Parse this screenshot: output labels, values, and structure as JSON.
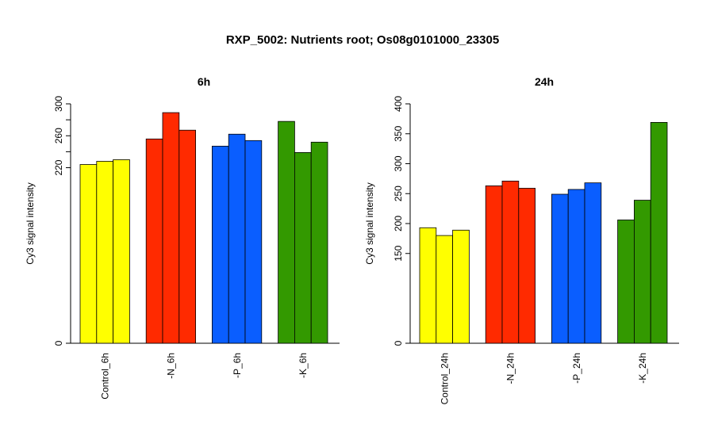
{
  "title": "RXP_5002: Nutrients root; Os08g0101000_23305",
  "chart_data": [
    {
      "type": "bar",
      "title": "6h",
      "ylabel": "Cy3 signal intensity",
      "ylim": [
        0,
        300
      ],
      "yticks": [
        "0",
        "220",
        "260",
        "300"
      ],
      "y_minor_ticks": [
        240,
        280
      ],
      "categories": [
        "Control_6h",
        "-N_6h",
        "-P_6h",
        "-K_6h"
      ],
      "colors": [
        "#ffff00",
        "#ff2a00",
        "#0a5eff",
        "#339900"
      ],
      "values": [
        [
          224,
          228,
          230
        ],
        [
          256,
          289,
          267
        ],
        [
          247,
          262,
          254
        ],
        [
          278,
          239,
          252
        ]
      ]
    },
    {
      "type": "bar",
      "title": "24h",
      "ylabel": "Cy3 signal intensity",
      "ylim": [
        0,
        400
      ],
      "yticks": [
        "0",
        "150",
        "200",
        "250",
        "300",
        "350",
        "400"
      ],
      "y_minor_ticks": [],
      "categories": [
        "Control_24h",
        "-N_24h",
        "-P_24h",
        "-K_24h"
      ],
      "colors": [
        "#ffff00",
        "#ff2a00",
        "#0a5eff",
        "#339900"
      ],
      "values": [
        [
          193,
          180,
          189
        ],
        [
          263,
          271,
          259
        ],
        [
          249,
          257,
          268
        ],
        [
          206,
          239,
          369
        ]
      ]
    }
  ]
}
